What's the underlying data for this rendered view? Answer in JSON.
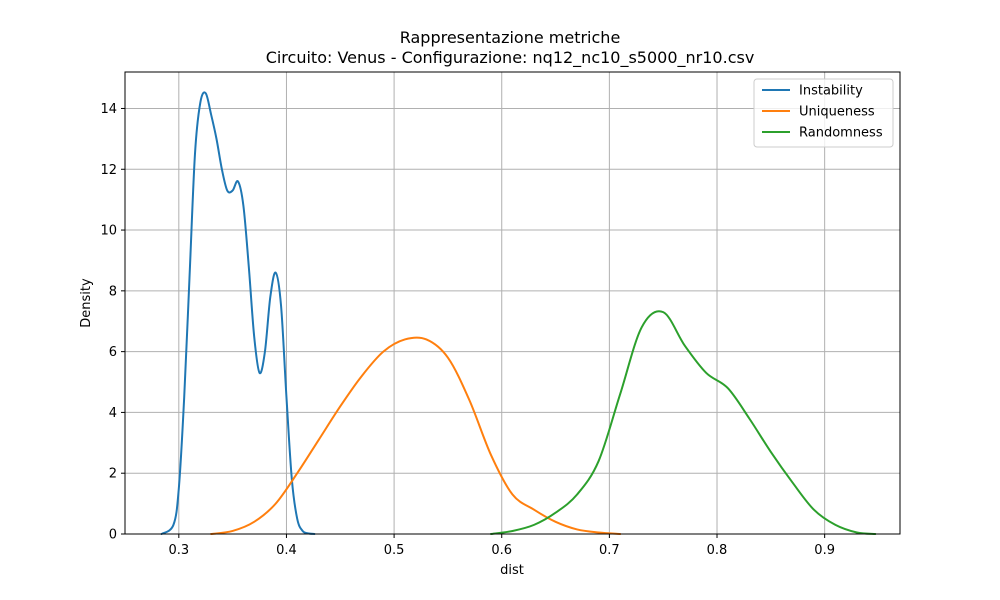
{
  "chart_data": {
    "type": "line",
    "title": "Rappresentazione metriche",
    "subtitle": "Circuito: Venus - Configurazione: nq12_nc10_s5000_nr10.csv",
    "xlabel": "dist",
    "ylabel": "Density",
    "xlim": [
      0.25,
      0.97
    ],
    "ylim": [
      0,
      15.2
    ],
    "xticks": [
      0.3,
      0.4,
      0.5,
      0.6,
      0.7,
      0.8,
      0.9
    ],
    "xtick_labels": [
      "0.3",
      "0.4",
      "0.5",
      "0.6",
      "0.7",
      "0.8",
      "0.9"
    ],
    "yticks": [
      0,
      2,
      4,
      6,
      8,
      10,
      12,
      14
    ],
    "ytick_labels": [
      "0",
      "2",
      "4",
      "6",
      "8",
      "10",
      "12",
      "14"
    ],
    "grid": true,
    "legend_position": "top-right",
    "series": [
      {
        "name": "Instability",
        "color": "#1f77b4",
        "x": [
          0.284,
          0.295,
          0.3,
          0.305,
          0.31,
          0.315,
          0.32,
          0.325,
          0.33,
          0.335,
          0.34,
          0.345,
          0.35,
          0.355,
          0.36,
          0.365,
          0.37,
          0.375,
          0.38,
          0.385,
          0.39,
          0.395,
          0.4,
          0.405,
          0.41,
          0.415,
          0.42,
          0.426
        ],
        "y": [
          0.0,
          0.3,
          1.5,
          4.5,
          8.5,
          12.5,
          14.2,
          14.5,
          13.8,
          13.0,
          12.0,
          11.3,
          11.3,
          11.6,
          10.8,
          8.8,
          6.5,
          5.3,
          6.0,
          7.8,
          8.6,
          7.5,
          4.5,
          1.8,
          0.5,
          0.1,
          0.02,
          0.0
        ]
      },
      {
        "name": "Uniqueness",
        "color": "#ff7f0e",
        "x": [
          0.33,
          0.35,
          0.37,
          0.39,
          0.41,
          0.43,
          0.45,
          0.47,
          0.49,
          0.51,
          0.53,
          0.55,
          0.57,
          0.59,
          0.61,
          0.63,
          0.65,
          0.67,
          0.69,
          0.71
        ],
        "y": [
          0.0,
          0.1,
          0.4,
          1.0,
          2.0,
          3.1,
          4.2,
          5.2,
          6.0,
          6.4,
          6.4,
          5.8,
          4.4,
          2.6,
          1.3,
          0.8,
          0.4,
          0.15,
          0.05,
          0.0
        ]
      },
      {
        "name": "Randomness",
        "color": "#2ca02c",
        "x": [
          0.59,
          0.61,
          0.63,
          0.65,
          0.67,
          0.69,
          0.71,
          0.73,
          0.75,
          0.77,
          0.79,
          0.81,
          0.83,
          0.85,
          0.87,
          0.89,
          0.91,
          0.93,
          0.947
        ],
        "y": [
          0.0,
          0.1,
          0.3,
          0.7,
          1.3,
          2.4,
          4.6,
          6.8,
          7.3,
          6.2,
          5.3,
          4.8,
          3.8,
          2.7,
          1.7,
          0.8,
          0.3,
          0.05,
          0.0
        ]
      }
    ]
  }
}
